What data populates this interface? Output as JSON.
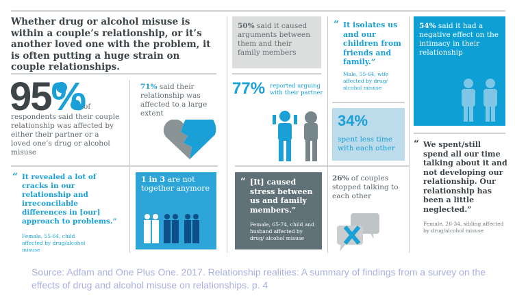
{
  "headline": "Whether drug or alcohol misuse is within a couple’s relationship, or it’s another loved one with the problem, it is often putting a huge strain on couple relationships.",
  "stat95": {
    "value": "95%",
    "of": "of",
    "text": "respondents said their couple relationship was affected by either their partner or a loved one’s drug or alcohol misuse"
  },
  "stat71": {
    "value": "71%",
    "text": " said their relationship was affected to a large extent"
  },
  "stat50": {
    "value": "50%",
    "text": " said it caused arguments between them and their family members"
  },
  "stat77": {
    "value": "77%",
    "text": "reported arguing with their partner"
  },
  "quote_isolates": {
    "text": "It isolates us and our children from friends and family.”",
    "attribution": "Male, 55-64, wife affected by drug/ alcohol misuse"
  },
  "stat34": {
    "value": "34%",
    "text": "spent less time with each other"
  },
  "stat54": {
    "value": "54%",
    "text": " said it had a negative effect on the intimacy in their relationship"
  },
  "quote_spent": {
    "text": "We spent/still spend all our time talking about it and not developing our relationship. Our relationship has been a little neglected.”",
    "attribution": "Female, 26-34, sibling affected by drug/alcohol misuse"
  },
  "quote_cracks": {
    "text": "It revealed a lot of cracks in our relationship and irreconcilable differences in [our] approach to problems.”",
    "attribution": "Female, 55-64, child affected by drug/alcohol misuse"
  },
  "stat1in3": {
    "value": "1 in 3",
    "text": " are not together anymore"
  },
  "quote_stress": {
    "text": "[It] caused stress between us and family members.”",
    "attribution": "Female, 65-74, child and husband affected by drug/ alcohol misuse"
  },
  "stat26": {
    "value": "26%",
    "text": " of couples stopped talking to each other"
  },
  "quote_mark": "“",
  "source": "Source: Adfam and One Plus One. 2017. Relationship realities: A summary of findings from a survey on the effects of drug and alcohol misuse on relationships. p. 4",
  "colors": {
    "blue": "#1aa0d6",
    "dark": "#3d4549",
    "gray": "#607277",
    "light": "#bcdcec"
  }
}
